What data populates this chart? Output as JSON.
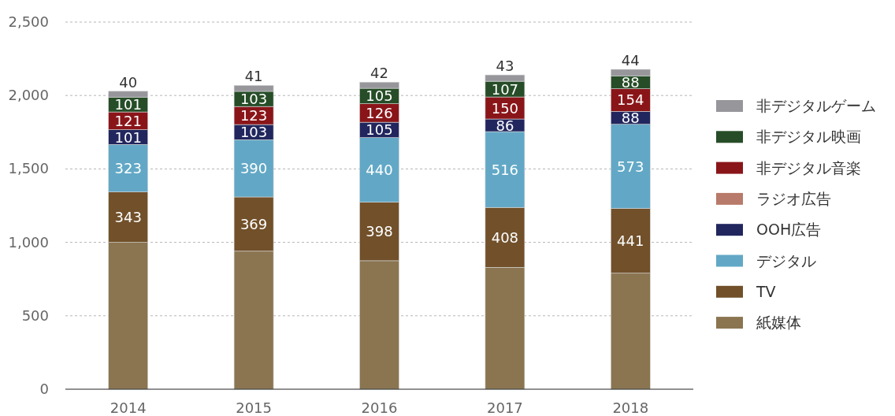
{
  "chart_data": {
    "type": "bar",
    "stacked": true,
    "grid": "y",
    "legend": "right",
    "categories": [
      "2014",
      "2015",
      "2016",
      "2017",
      "2018"
    ],
    "ylim": [
      0,
      2500
    ],
    "yticks": [
      0,
      500,
      {
        "value": 1000,
        "label": "1,000"
      },
      {
        "value": 1500,
        "label": "1,500"
      },
      {
        "value": 2000,
        "label": "2,000"
      },
      {
        "value": 2500,
        "label": "2,500"
      }
    ],
    "series": [
      {
        "name": "紙媒体",
        "color": "#8a7550",
        "values": [
          1000,
          940,
          875,
          830,
          790
        ]
      },
      {
        "name": "TV",
        "color": "#71502a",
        "values": [
          343,
          369,
          398,
          408,
          441
        ],
        "value_labels": [
          "343",
          "369",
          "398",
          "408",
          "441"
        ]
      },
      {
        "name": "デジタル",
        "color": "#62a8c6",
        "values": [
          323,
          390,
          440,
          516,
          573
        ],
        "value_labels": [
          "323",
          "390",
          "440",
          "516",
          "573"
        ]
      },
      {
        "name": "OOH広告",
        "color": "#21265e",
        "values": [
          101,
          103,
          105,
          86,
          88
        ],
        "value_labels": [
          "101",
          "103",
          "105",
          "86",
          "88"
        ]
      },
      {
        "name": "ラジオ広告",
        "color": "#b87a6a",
        "values": [
          null,
          null,
          null,
          null,
          null
        ]
      },
      {
        "name": "非デジタル音楽",
        "color": "#8a1519",
        "values": [
          121,
          123,
          126,
          150,
          154
        ],
        "value_labels": [
          "121",
          "123",
          "126",
          "150",
          "154"
        ]
      },
      {
        "name": "非デジタル映画",
        "color": "#264d27",
        "values": [
          101,
          103,
          105,
          107,
          88
        ],
        "value_labels": [
          "101",
          "103",
          "105",
          "107",
          "88"
        ]
      },
      {
        "name": "非デジタルゲーム",
        "color": "#96969b",
        "values": [
          40,
          41,
          42,
          43,
          44
        ],
        "value_labels": [
          "40",
          "41",
          "42",
          "43",
          "44"
        ]
      }
    ]
  }
}
